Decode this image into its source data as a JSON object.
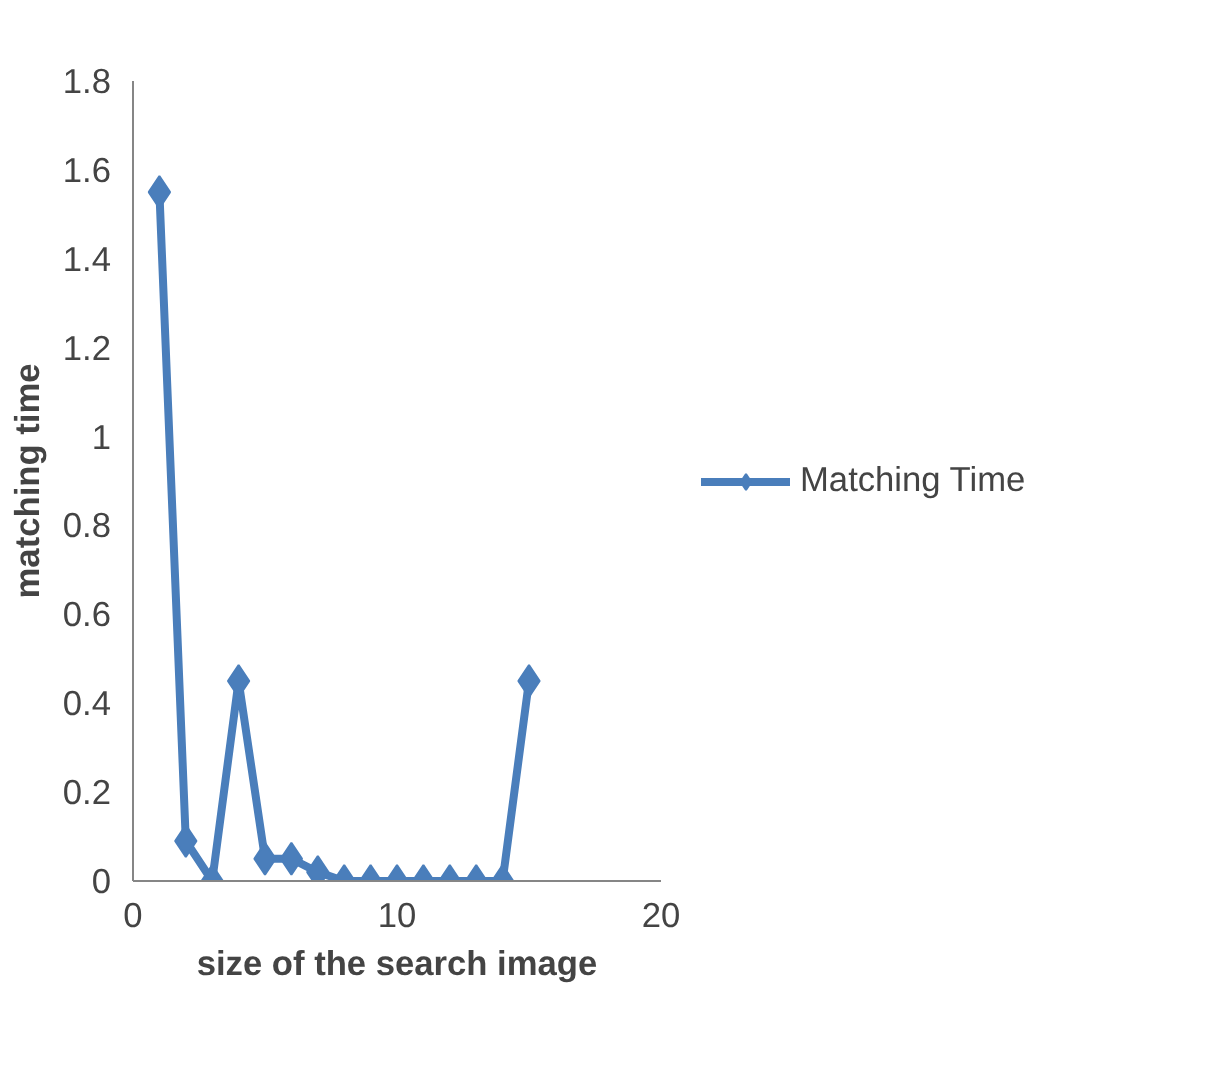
{
  "chart_data": {
    "type": "line",
    "xlabel": "size of the search image",
    "ylabel": "matching time",
    "x": [
      1,
      2,
      3,
      4,
      5,
      6,
      7,
      8,
      9,
      10,
      11,
      12,
      13,
      14,
      15
    ],
    "series": [
      {
        "name": "Matching Time",
        "color": "#4a7ebb",
        "values": [
          1.55,
          0.09,
          0,
          0.45,
          0.05,
          0.05,
          0.02,
          0,
          0,
          0,
          0,
          0,
          0,
          0,
          0.45
        ]
      }
    ],
    "xlim": [
      0,
      20
    ],
    "xticks": [
      0,
      10,
      20
    ],
    "ylim": [
      0,
      1.8
    ],
    "yticks": [
      0,
      0.2,
      0.4,
      0.6,
      0.8,
      1,
      1.2,
      1.4,
      1.6,
      1.8
    ],
    "grid": false,
    "legend": "right",
    "marker": "diamond",
    "line_style": "solid"
  }
}
